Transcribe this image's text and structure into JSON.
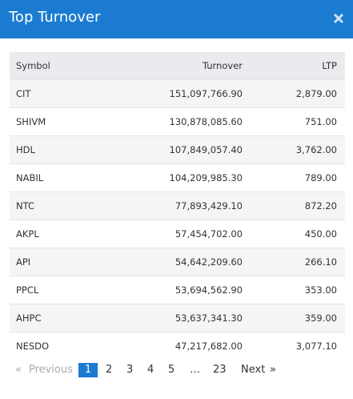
{
  "header": {
    "title": "Top Turnover"
  },
  "table": {
    "columns": [
      "Symbol",
      "Turnover",
      "LTP"
    ],
    "rows": [
      [
        "CIT",
        "151,097,766.90",
        "2,879.00"
      ],
      [
        "SHIVM",
        "130,878,085.60",
        "751.00"
      ],
      [
        "HDL",
        "107,849,057.40",
        "3,762.00"
      ],
      [
        "NABIL",
        "104,209,985.30",
        "789.00"
      ],
      [
        "NTC",
        "77,893,429.10",
        "872.20"
      ],
      [
        "AKPL",
        "57,454,702.00",
        "450.00"
      ],
      [
        "API",
        "54,642,209.60",
        "266.10"
      ],
      [
        "PPCL",
        "53,694,562.90",
        "353.00"
      ],
      [
        "AHPC",
        "53,637,341.30",
        "359.00"
      ],
      [
        "NESDO",
        "47,217,682.00",
        "3,077.10"
      ]
    ]
  },
  "pagination": {
    "items": [
      "«",
      "Previous",
      "1",
      "2",
      "3",
      "4",
      "5",
      "…",
      "23",
      "Next",
      "»"
    ],
    "active": "1"
  }
}
